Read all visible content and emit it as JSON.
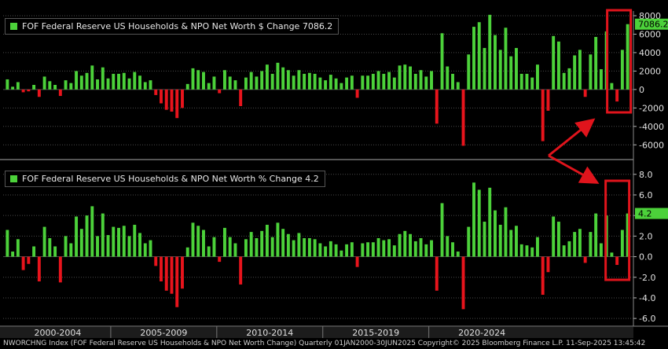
{
  "chart_data": [
    {
      "type": "bar",
      "legend": "FOF Federal Reserve US Households & NPO Net Worth $ Change 7086.2",
      "last_value_label": "7086.2",
      "ylim": [
        -7000,
        8000
      ],
      "yticks": [
        -6000,
        -4000,
        -2000,
        0,
        2000,
        4000,
        6000,
        8000
      ],
      "ytick_labels": [
        "-6000",
        "-4000",
        "-2000",
        "0",
        "2000",
        "4000",
        "6000",
        "8000"
      ],
      "values": [
        1100,
        300,
        800,
        -300,
        -200,
        500,
        -800,
        1400,
        900,
        500,
        -700,
        1000,
        700,
        2000,
        1500,
        1800,
        2600,
        1100,
        2400,
        1200,
        1700,
        1700,
        1800,
        1200,
        1900,
        1500,
        800,
        1000,
        -600,
        -1500,
        -2200,
        -2400,
        -3100,
        -2000,
        600,
        2300,
        2100,
        1900,
        700,
        1400,
        -400,
        2100,
        1400,
        1000,
        -1800,
        1300,
        1900,
        1400,
        2000,
        2700,
        1700,
        2900,
        2400,
        2100,
        1500,
        2100,
        1700,
        1800,
        1700,
        1300,
        1000,
        1600,
        1200,
        700,
        1300,
        1500,
        -900,
        1500,
        1500,
        1700,
        2000,
        1700,
        1900,
        1300,
        2600,
        2700,
        2500,
        1700,
        2100,
        1400,
        2000,
        -3700,
        6100,
        2500,
        1700,
        800,
        -6100,
        3800,
        6800,
        7300,
        4500,
        8100,
        5900,
        4300,
        6700,
        3600,
        4500,
        1700,
        1700,
        1300,
        2700,
        -5600,
        -2300,
        5800,
        5200,
        1800,
        2300,
        3700,
        4300,
        -800,
        3800,
        5700,
        2200,
        6300,
        700,
        -1300,
        4300,
        7086.2
      ]
    },
    {
      "type": "bar",
      "legend": "FOF Federal Reserve US Households & NPO Net Worth % Change 4.2",
      "last_value_label": "4.2",
      "ylim": [
        -6.6,
        8.9
      ],
      "yticks": [
        -6,
        -4,
        -2,
        0,
        2,
        4,
        6,
        8
      ],
      "ytick_labels": [
        "-6.0",
        "-4.0",
        "-2.0",
        "0.0",
        "2.0",
        "4.0",
        "6.0",
        "8.0"
      ],
      "values": [
        2.6,
        0.5,
        1.7,
        -1.3,
        -0.7,
        1.0,
        -2.4,
        2.9,
        1.8,
        1.0,
        -2.5,
        2.0,
        1.3,
        3.9,
        2.7,
        4.0,
        4.9,
        2.0,
        4.2,
        2.1,
        2.9,
        2.8,
        3.0,
        2.0,
        3.1,
        2.3,
        1.3,
        1.6,
        -0.9,
        -2.4,
        -3.3,
        -3.6,
        -4.9,
        -3.1,
        0.9,
        3.3,
        3.0,
        2.6,
        1.0,
        1.9,
        -0.5,
        2.8,
        1.9,
        1.3,
        -2.7,
        1.7,
        2.4,
        1.8,
        2.5,
        3.1,
        1.9,
        3.3,
        2.7,
        2.2,
        1.6,
        2.3,
        1.8,
        1.8,
        1.7,
        1.3,
        1.0,
        1.5,
        1.2,
        0.6,
        1.2,
        1.4,
        -1.0,
        1.3,
        1.4,
        1.4,
        1.8,
        1.6,
        1.7,
        1.1,
        2.2,
        2.5,
        2.2,
        1.5,
        1.8,
        1.2,
        1.6,
        -3.3,
        5.2,
        2.0,
        1.4,
        0.5,
        -5.1,
        2.9,
        7.2,
        6.5,
        3.4,
        6.7,
        4.5,
        3.1,
        4.8,
        2.6,
        3.0,
        1.2,
        1.1,
        0.9,
        1.9,
        -3.7,
        -1.5,
        3.9,
        3.4,
        1.1,
        1.5,
        2.4,
        2.7,
        -0.6,
        2.4,
        4.2,
        1.3,
        4.0,
        0.4,
        -0.8,
        2.6,
        4.2
      ]
    }
  ],
  "x_axis": {
    "period_labels": [
      "2000-2004",
      "2005-2009",
      "2010-2014",
      "2015-2019",
      "2020-2024"
    ]
  },
  "colors": {
    "positive": "#4cd13a",
    "negative": "#e8141c",
    "annotation": "#e0141c",
    "label_bg": "#4cd13a"
  },
  "footer": "NWORCHNG Index (FOF Federal Reserve US Households & NPO Net Worth Change)  Quarterly 01JAN2000-30JUN2025 Copyright© 2025 Bloomberg Finance L.P.  11-Sep-2025 13:45:42"
}
